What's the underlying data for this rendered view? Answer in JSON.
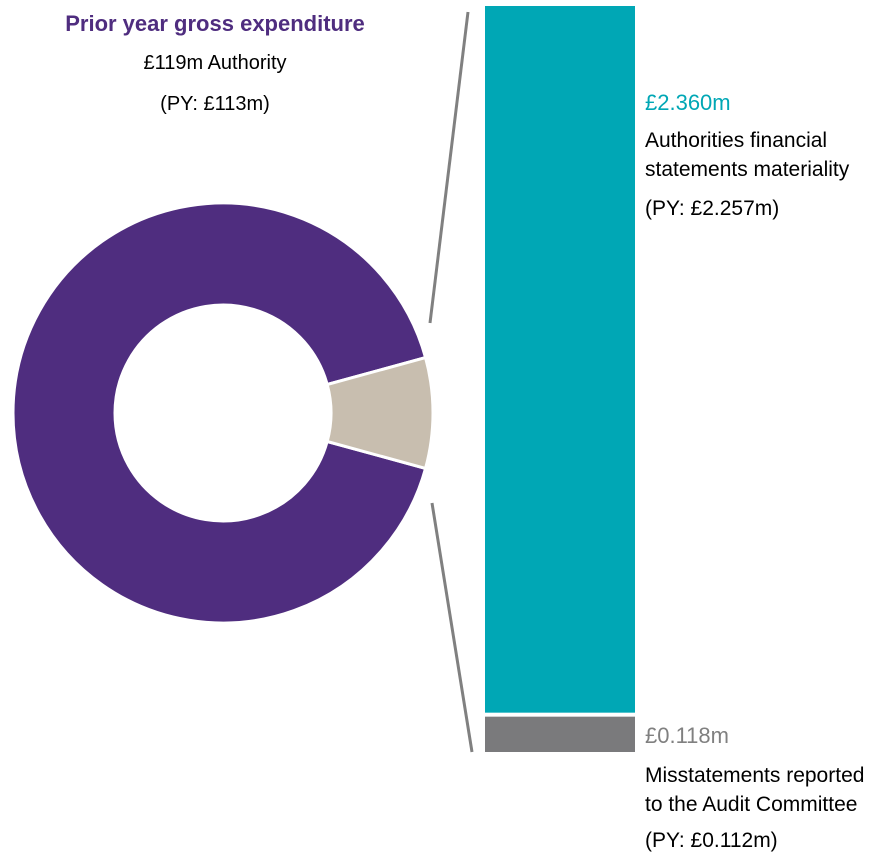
{
  "colors": {
    "purple": "#4f2d7f",
    "beige": "#c8beaf",
    "teal": "#00a7b5",
    "grey": "#7a7a7c",
    "connector": "#808080"
  },
  "donut": {
    "title": "Prior year gross expenditure",
    "subtitle": "£119m Authority",
    "prior_year": "(PY: £113m)"
  },
  "materiality": {
    "value": "£2.360m",
    "label_line1": "Authorities financial",
    "label_line2": "statements materiality",
    "prior_year": "(PY: £2.257m)"
  },
  "misstatements": {
    "value": "£0.118m",
    "label_line1": "Misstatements reported",
    "label_line2": "to the Audit Committee",
    "prior_year": "(PY: £0.112m)"
  },
  "chart_data": {
    "type": "pie",
    "slices": [
      {
        "value": 91.5,
        "color": "#4f2d7f"
      },
      {
        "value": 8.5,
        "color": "#c8beaf"
      }
    ],
    "stacked_bar": {
      "segments": [
        {
          "name": "Authorities financial statements materiality",
          "value": 2.36,
          "color": "#00a7b5"
        },
        {
          "name": "Misstatements reported to the Audit Committee",
          "value": 0.118,
          "color": "#7a7a7c"
        }
      ]
    }
  }
}
